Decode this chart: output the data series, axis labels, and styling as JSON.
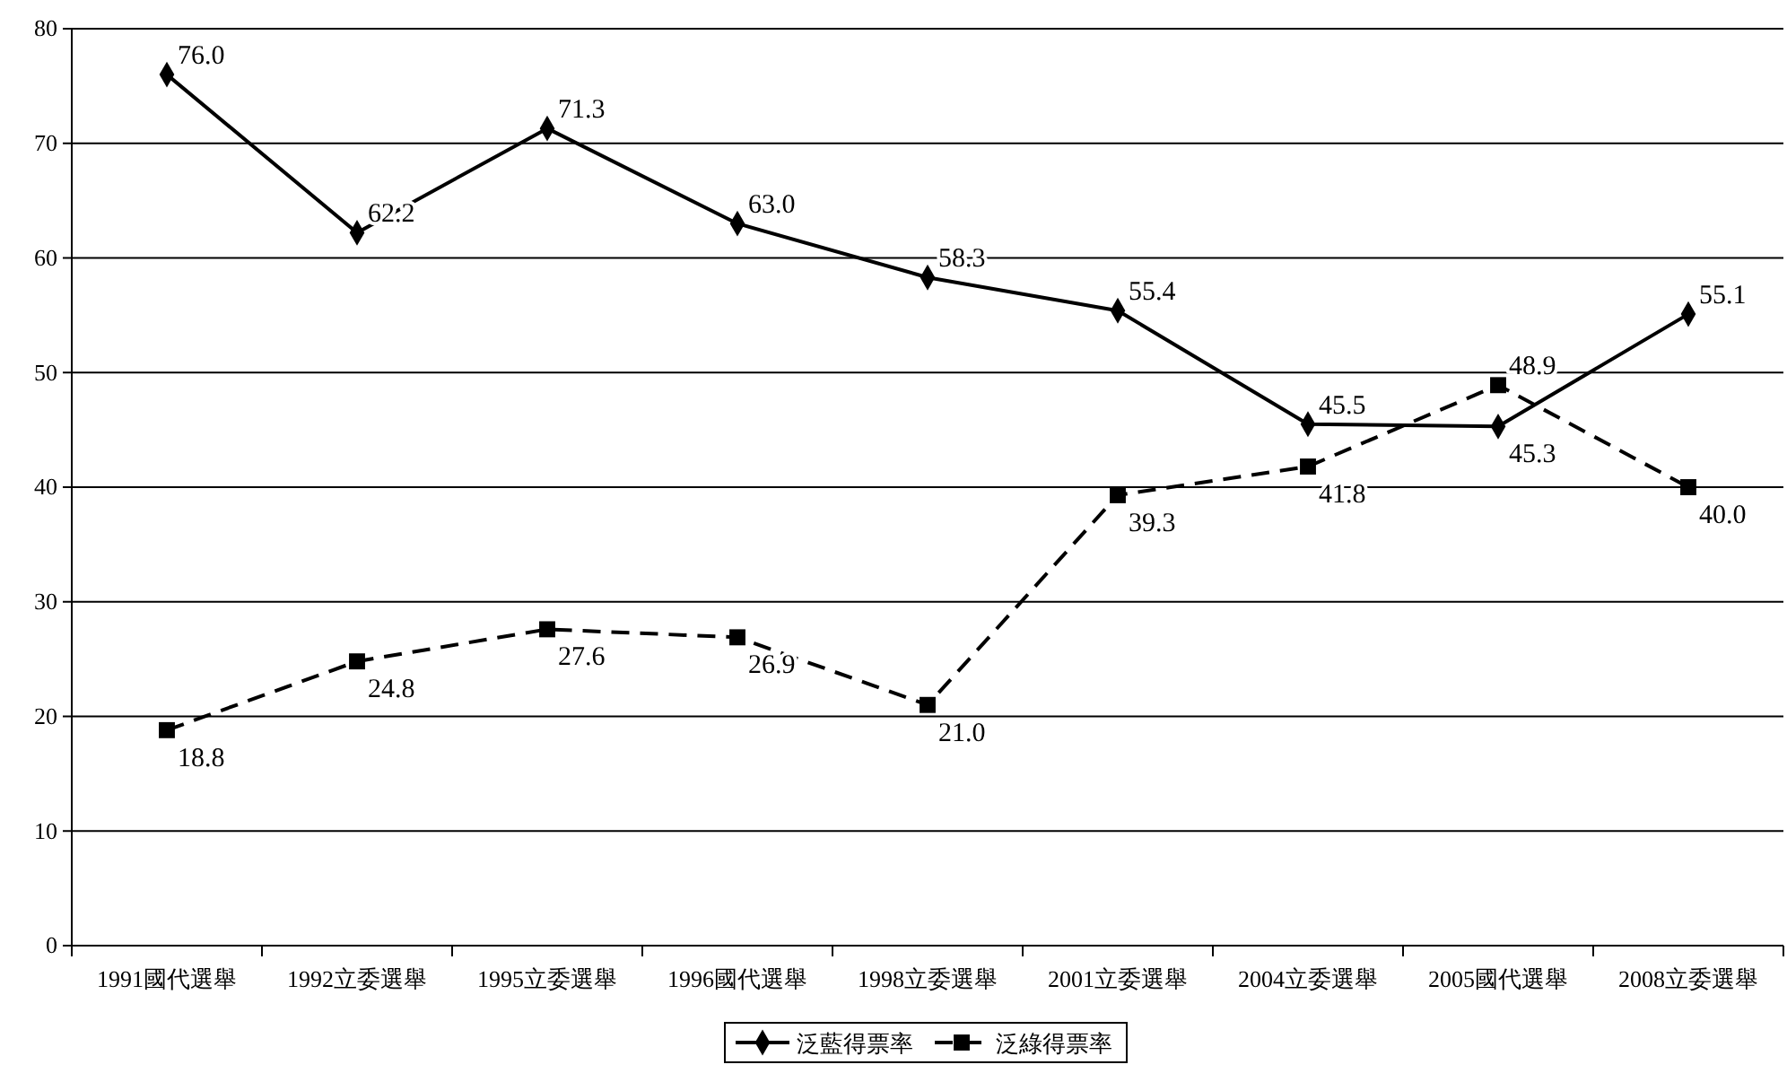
{
  "chart_data": {
    "type": "line",
    "categories": [
      "1991國代選舉",
      "1992立委選舉",
      "1995立委選舉",
      "1996國代選舉",
      "1998立委選舉",
      "2001立委選舉",
      "2004立委選舉",
      "2005國代選舉",
      "2008立委選舉"
    ],
    "series": [
      {
        "name": "泛藍得票率",
        "color": "#000000",
        "marker": "diamond",
        "line_style": "solid",
        "values": [
          76.0,
          62.2,
          71.3,
          63.0,
          58.3,
          55.4,
          45.5,
          45.3,
          55.1
        ],
        "value_labels": [
          "76.0",
          "62.2",
          "71.3",
          "63.0",
          "58.3",
          "55.4",
          "45.5",
          "45.3",
          "55.1"
        ]
      },
      {
        "name": "泛綠得票率",
        "color": "#000000",
        "marker": "square",
        "line_style": "dashed",
        "values": [
          18.8,
          24.8,
          27.6,
          26.9,
          21.0,
          39.3,
          41.8,
          48.9,
          40.0
        ],
        "value_labels": [
          "18.8",
          "24.8",
          "27.6",
          "26.9",
          "21.0",
          "39.3",
          "41.8",
          "48.9",
          "40.0"
        ]
      }
    ],
    "ylim": [
      0,
      80
    ],
    "yticks": [
      0,
      10,
      20,
      30,
      40,
      50,
      60,
      70,
      80
    ],
    "grid": "y",
    "legend": "bottom"
  }
}
